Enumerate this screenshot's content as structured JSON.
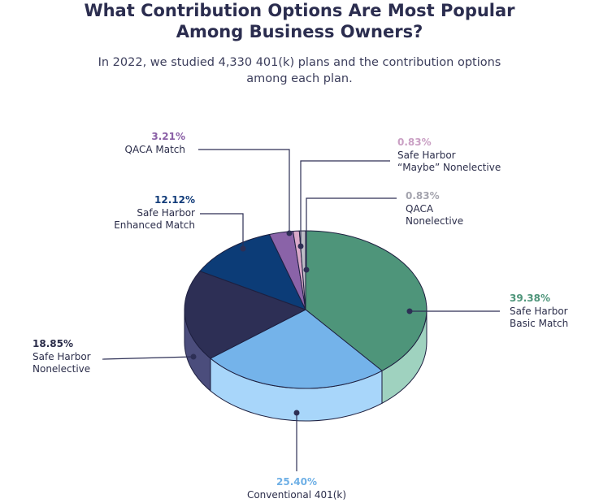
{
  "title_lines": [
    "What Contribution Options Are Most Popular",
    "Among Business Owners?"
  ],
  "subtitle_lines": [
    "In 2022, we studied 4,330 401(k) plans and the contribution options",
    "among each plan."
  ],
  "chart_data": {
    "type": "pie",
    "style": "3d",
    "slices": [
      {
        "label": [
          "Safe Harbor",
          "Basic Match"
        ],
        "value": 39.38,
        "pct_label": "39.38%",
        "color": "#4e957a",
        "side_color": "#9fd2bf",
        "label_color": "#4e957a"
      },
      {
        "label": [
          "Conventional 401(k)"
        ],
        "value": 25.4,
        "pct_label": "25.40%",
        "color": "#74b3ea",
        "side_color": "#a8d6fa",
        "label_color": "#6fb0e6"
      },
      {
        "label": [
          "Safe Harbor",
          "Nonelective"
        ],
        "value": 18.85,
        "pct_label": "18.85%",
        "color": "#2d2f55",
        "side_color": "#4b4d7c",
        "label_color": "#2b2d4a"
      },
      {
        "label": [
          "Safe Harbor",
          "Enhanced Match"
        ],
        "value": 12.12,
        "pct_label": "12.12%",
        "color": "#0c3c77",
        "side_color": "#0c3c77",
        "label_color": "#133d7a"
      },
      {
        "label": [
          "QACA Match"
        ],
        "value": 3.21,
        "pct_label": "3.21%",
        "color": "#8a63a8",
        "side_color": "#8a63a8",
        "label_color": "#8a5fa6"
      },
      {
        "label": [
          "Safe Harbor",
          "“Maybe” Nonelective"
        ],
        "value": 0.83,
        "pct_label": "0.83%",
        "color": "#d9a9c9",
        "side_color": "#d9a9c9",
        "label_color": "#caa0c4"
      },
      {
        "label": [
          "QACA",
          "Nonelective"
        ],
        "value": 0.83,
        "pct_label": "0.83%",
        "color": "#bdbdc6",
        "side_color": "#bdbdc6",
        "label_color": "#a4a4ae"
      }
    ]
  }
}
